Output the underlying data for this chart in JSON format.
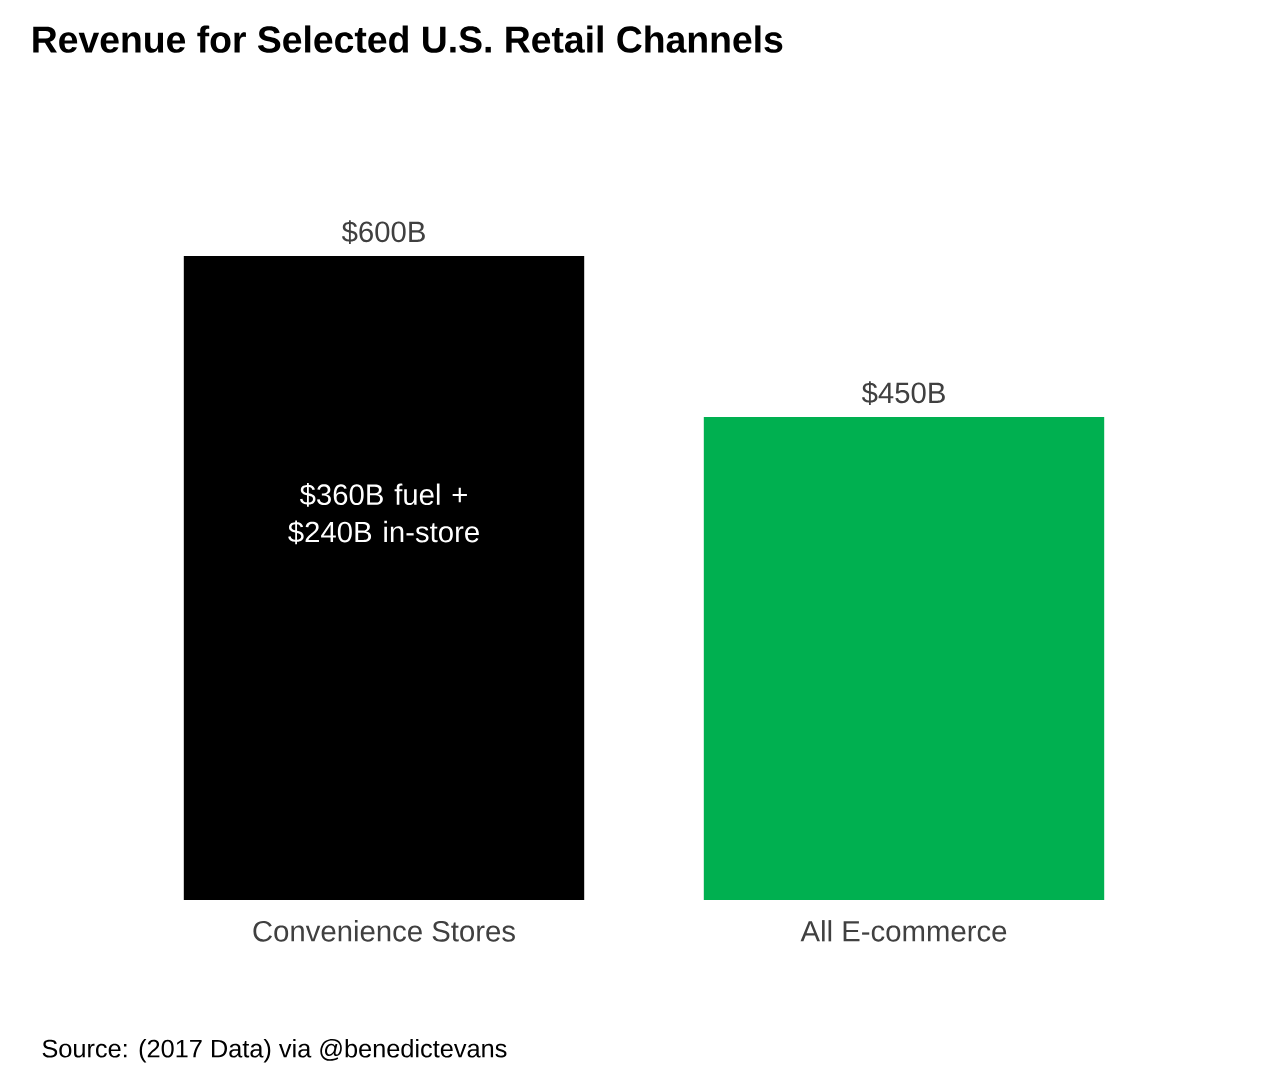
{
  "chart_data": {
    "type": "bar",
    "title": "Revenue for Selected U.S. Retail Channels",
    "categories": [
      "Convenience Stores",
      "All E-commerce"
    ],
    "values": [
      600,
      450
    ],
    "colors": [
      "#000000",
      "#00b050"
    ],
    "value_labels": [
      "$600B",
      "$450B"
    ],
    "ylim": [
      0,
      600
    ],
    "tick_labels": "x",
    "annotations": [
      "$360B fuel + $240B in-store",
      "Source: (2017 Data) via @benedictevans"
    ]
  }
}
